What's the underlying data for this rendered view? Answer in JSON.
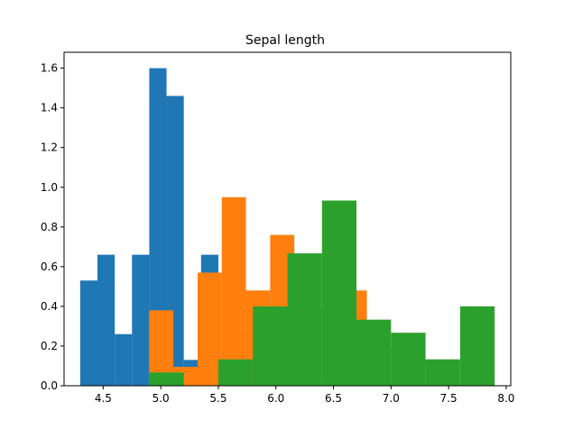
{
  "chart_data": {
    "type": "bar",
    "title": "Sepal length",
    "xlabel": "",
    "ylabel": "",
    "xlim": [
      4.16,
      8.04
    ],
    "ylim": [
      0,
      1.68
    ],
    "grid": false,
    "x_ticks": [
      4.5,
      5.0,
      5.5,
      6.0,
      6.5,
      7.0,
      7.5,
      8.0
    ],
    "x_tick_labels": [
      "4.5",
      "5.0",
      "5.5",
      "6.0",
      "6.5",
      "7.0",
      "7.5",
      "8.0"
    ],
    "y_ticks": [
      0.0,
      0.2,
      0.4,
      0.6,
      0.8,
      1.0,
      1.2,
      1.4,
      1.6
    ],
    "y_tick_labels": [
      "0.0",
      "0.2",
      "0.4",
      "0.6",
      "0.8",
      "1.0",
      "1.2",
      "1.4",
      "1.6"
    ],
    "series": [
      {
        "color": "#1f77b4",
        "bins": [
          {
            "x0": 4.3,
            "x1": 4.45,
            "value": 0.53
          },
          {
            "x0": 4.45,
            "x1": 4.6,
            "value": 0.66
          },
          {
            "x0": 4.6,
            "x1": 4.75,
            "value": 0.26
          },
          {
            "x0": 4.75,
            "x1": 4.9,
            "value": 0.66
          },
          {
            "x0": 4.9,
            "x1": 5.05,
            "value": 1.6
          },
          {
            "x0": 5.05,
            "x1": 5.2,
            "value": 1.46
          },
          {
            "x0": 5.2,
            "x1": 5.35,
            "value": 0.13
          },
          {
            "x0": 5.35,
            "x1": 5.5,
            "value": 0.66
          },
          {
            "x0": 5.5,
            "x1": 5.65,
            "value": 0.13
          },
          {
            "x0": 5.65,
            "x1": 5.8,
            "value": 0.26
          }
        ]
      },
      {
        "color": "#ff7f0e",
        "bins": [
          {
            "x0": 4.9,
            "x1": 5.11,
            "value": 0.38
          },
          {
            "x0": 5.11,
            "x1": 5.32,
            "value": 0.095
          },
          {
            "x0": 5.32,
            "x1": 5.53,
            "value": 0.57
          },
          {
            "x0": 5.53,
            "x1": 5.74,
            "value": 0.95
          },
          {
            "x0": 5.74,
            "x1": 5.95,
            "value": 0.48
          },
          {
            "x0": 5.95,
            "x1": 6.16,
            "value": 0.76
          },
          {
            "x0": 6.16,
            "x1": 6.37,
            "value": 0.57
          },
          {
            "x0": 6.37,
            "x1": 6.58,
            "value": 0.38
          },
          {
            "x0": 6.58,
            "x1": 6.79,
            "value": 0.48
          },
          {
            "x0": 6.79,
            "x1": 7.0,
            "value": 0.19
          }
        ]
      },
      {
        "color": "#2ca02c",
        "bins": [
          {
            "x0": 4.9,
            "x1": 5.2,
            "value": 0.067
          },
          {
            "x0": 5.2,
            "x1": 5.5,
            "value": 0.0
          },
          {
            "x0": 5.5,
            "x1": 5.8,
            "value": 0.133
          },
          {
            "x0": 5.8,
            "x1": 6.1,
            "value": 0.4
          },
          {
            "x0": 6.1,
            "x1": 6.4,
            "value": 0.667
          },
          {
            "x0": 6.4,
            "x1": 6.7,
            "value": 0.933
          },
          {
            "x0": 6.7,
            "x1": 7.0,
            "value": 0.333
          },
          {
            "x0": 7.0,
            "x1": 7.3,
            "value": 0.267
          },
          {
            "x0": 7.3,
            "x1": 7.6,
            "value": 0.133
          },
          {
            "x0": 7.6,
            "x1": 7.9,
            "value": 0.4
          }
        ]
      }
    ]
  }
}
